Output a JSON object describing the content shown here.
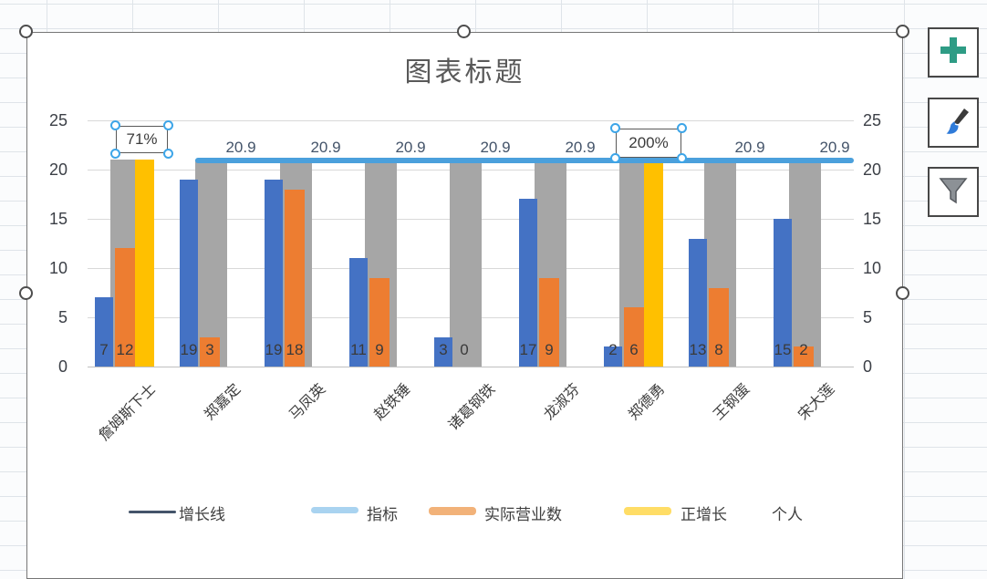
{
  "chart_data": {
    "type": "combo-bar-line",
    "title": "图表标题",
    "categories": [
      "詹姆斯下士",
      "郑嘉定",
      "马凤英",
      "赵铁锤",
      "诸葛钢铁",
      "龙淑芬",
      "郑德勇",
      "王钢蛋",
      "宋大莲"
    ],
    "series": [
      {
        "key": "blue-bars",
        "type": "bar",
        "color": "#4472c4",
        "values": [
          7,
          19,
          19,
          11,
          3,
          17,
          2,
          13,
          15
        ]
      },
      {
        "key": "gray-bars",
        "type": "bar",
        "color": "#a6a6a6",
        "values": [
          21,
          21,
          21,
          21,
          21,
          21,
          21,
          21,
          21
        ]
      },
      {
        "key": "orange-bars",
        "type": "bar",
        "color": "#ed7d31",
        "values": [
          12,
          3,
          18,
          9,
          0,
          9,
          6,
          8,
          2
        ]
      },
      {
        "key": "yellow-highlight-bars",
        "type": "bar",
        "color": "#ffc000",
        "values": [
          21,
          null,
          null,
          null,
          null,
          null,
          21,
          null,
          null
        ]
      },
      {
        "key": "target-line",
        "type": "line",
        "color": "#4ba0dc",
        "value": 20.9,
        "point_label": "20.9",
        "start_category_index": 1,
        "labeled_category_indexes": [
          1,
          2,
          3,
          4,
          5,
          7,
          8
        ]
      }
    ],
    "value_labels_shown_for": [
      "blue-bars",
      "orange-bars"
    ],
    "ylim": [
      0,
      25
    ],
    "ticks": [
      0,
      5,
      10,
      15,
      20,
      25
    ],
    "y_axis_left": true,
    "y_axis_right": true,
    "grid": true,
    "legend_position": "bottom"
  },
  "callouts": [
    {
      "text": "71%"
    },
    {
      "text": "200%"
    }
  ],
  "legend": {
    "items": [
      {
        "label": "增长线",
        "marker": "line",
        "color": "#44546a"
      },
      {
        "label": "指标",
        "marker": "thick-line",
        "color": "#a9d3f0"
      },
      {
        "label": "实际营业数",
        "marker": "swatch",
        "color": "#f2b279"
      },
      {
        "label": "正增长",
        "marker": "swatch",
        "color": "#ffdd66"
      },
      {
        "label": "个人",
        "marker": "none",
        "color": ""
      }
    ]
  },
  "toolbar": {
    "buttons": [
      {
        "name": "chart-elements",
        "icon": "plus-icon",
        "color": "#2e9c85"
      },
      {
        "name": "chart-styles",
        "icon": "brush-icon",
        "color": "#2f7bd9"
      },
      {
        "name": "chart-filters",
        "icon": "funnel-icon",
        "color": "#8c9196"
      }
    ]
  }
}
